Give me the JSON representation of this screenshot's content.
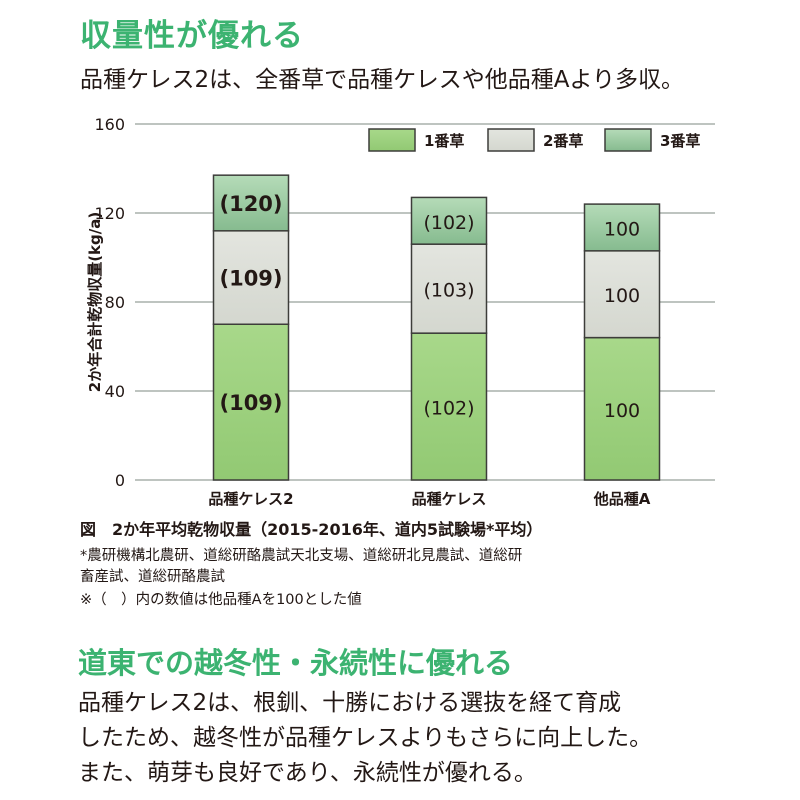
{
  "heading1": "収量性が優れる",
  "subheading1": "品種ケレス2は、全番草で品種ケレスや他品種Aより多収。",
  "chart_data": {
    "type": "bar",
    "stacked": true,
    "title": "",
    "ylabel": "2か年合計乾物収量(kg/a)",
    "xlabel": "",
    "ylim": [
      0,
      160
    ],
    "yticks": [
      "0",
      "40",
      "80",
      "120",
      "160"
    ],
    "grid": true,
    "legend_position": "top-right",
    "categories": [
      "品種ケレス2",
      "品種ケレス",
      "他品種A"
    ],
    "series": [
      {
        "name": "1番草",
        "color": "#9fd37e",
        "values": [
          70,
          66,
          64
        ],
        "labels": [
          "(109)",
          "(102)",
          "100"
        ]
      },
      {
        "name": "2番草",
        "color": "#dcdfd8",
        "values": [
          42,
          40,
          39
        ],
        "labels": [
          "(109)",
          "(103)",
          "100"
        ]
      },
      {
        "name": "3番草",
        "color": "#9ccaa3",
        "values": [
          25,
          21,
          21
        ],
        "labels": [
          "(120)",
          "(102)",
          "100"
        ]
      }
    ],
    "totals": [
      137,
      127,
      124
    ],
    "bold_labels_category": "品種ケレス2"
  },
  "caption": "図　2か年平均乾物収量（2015-2016年、道内5試験場*平均）",
  "notes": [
    "*農研機構北農研、道総研酪農試天北支場、道総研北見農試、道総研",
    "畜産試、道総研酪農試",
    "※（　）内の数値は他品種Aを100とした値"
  ],
  "heading2": "道東での越冬性・永続性に優れる",
  "body_lines": [
    "品種ケレス2は、根釧、十勝における選抜を経て育成",
    "したため、越冬性が品種ケレスよりもさらに向上した。",
    "また、萌芽も良好であり、永続性が優れる。"
  ]
}
